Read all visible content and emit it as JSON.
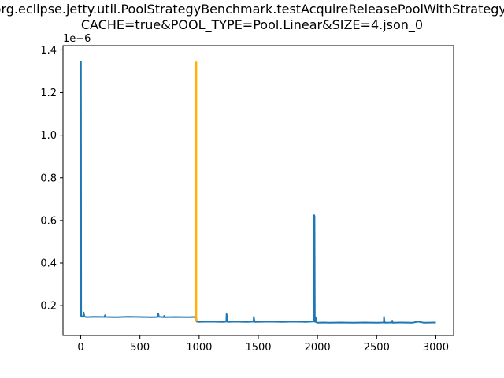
{
  "chart_data": {
    "type": "line",
    "title_line1": "org.eclipse.jetty.util.PoolStrategyBenchmark.testAcquireReleasePoolWithStrategy-",
    "title_line2": "CACHE=true&POOL_TYPE=Pool.Linear&SIZE=4.json_0",
    "xlabel": "",
    "ylabel": "",
    "y_offset_text": "1e−6",
    "xlim": [
      -150,
      3150
    ],
    "ylim": [
      0.06,
      1.42
    ],
    "x_ticks": [
      0,
      500,
      1000,
      1500,
      2000,
      2500,
      3000
    ],
    "x_tick_labels": [
      "0",
      "500",
      "1000",
      "1500",
      "2000",
      "2500",
      "3000"
    ],
    "y_ticks": [
      0.2,
      0.4,
      0.6,
      0.8,
      1.0,
      1.2,
      1.4
    ],
    "y_tick_labels": [
      "0.2",
      "0.4",
      "0.6",
      "0.8",
      "1.0",
      "1.2",
      "1.4"
    ],
    "grid": false,
    "series": [
      {
        "color": "#1f77b4",
        "x": [
          0,
          2,
          4,
          6,
          10,
          20,
          25,
          30,
          50,
          100,
          200,
          205,
          210,
          300,
          400,
          500,
          600,
          650,
          655,
          660,
          700,
          705,
          710,
          800,
          900,
          960,
          975,
          980,
          1000,
          1100,
          1200,
          1230,
          1232,
          1235,
          1240,
          1300,
          1400,
          1460,
          1462,
          1465,
          1470,
          1600,
          1700,
          1800,
          1900,
          1950,
          1970,
          1972,
          1975,
          1978,
          1980,
          1985,
          1990,
          2000,
          2050,
          2100,
          2200,
          2300,
          2400,
          2500,
          2560,
          2562,
          2565,
          2570,
          2630,
          2632,
          2635,
          2700,
          2800,
          2850,
          2900,
          3000
        ],
        "y": [
          0.15,
          1.345,
          0.16,
          0.148,
          0.15,
          0.147,
          0.168,
          0.149,
          0.146,
          0.148,
          0.147,
          0.155,
          0.147,
          0.146,
          0.148,
          0.147,
          0.146,
          0.147,
          0.163,
          0.148,
          0.146,
          0.152,
          0.146,
          0.147,
          0.146,
          0.147,
          0.145,
          0.125,
          0.124,
          0.125,
          0.124,
          0.125,
          0.16,
          0.152,
          0.124,
          0.125,
          0.124,
          0.125,
          0.148,
          0.138,
          0.124,
          0.125,
          0.124,
          0.125,
          0.124,
          0.125,
          0.126,
          0.625,
          0.62,
          0.15,
          0.124,
          0.145,
          0.122,
          0.12,
          0.121,
          0.12,
          0.121,
          0.12,
          0.121,
          0.12,
          0.121,
          0.148,
          0.13,
          0.12,
          0.121,
          0.13,
          0.12,
          0.121,
          0.12,
          0.125,
          0.12,
          0.121
        ]
      }
    ],
    "vertical_markers": [
      {
        "x": 975,
        "y_from": 0.125,
        "y_to": 1.345,
        "color": "#ffb000"
      }
    ]
  }
}
